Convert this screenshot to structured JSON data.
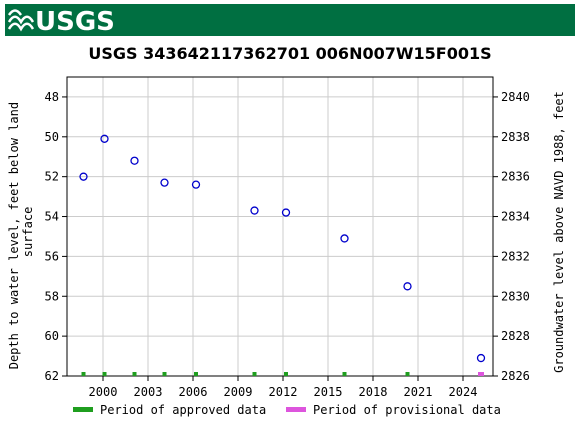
{
  "header": {
    "logo_text": "USGS",
    "bar_color": "#006f41"
  },
  "chart_data": {
    "type": "scatter",
    "title": "USGS 343642117362701 006N007W15F001S",
    "ylabel_left": "Depth to water level, feet below land surface",
    "ylabel_right": "Groundwater level above NAVD 1988, feet",
    "xlim": [
      1997.6,
      2026.0
    ],
    "ylim_left": [
      62,
      47
    ],
    "ylim_right": [
      2826,
      2841
    ],
    "x_ticks": [
      2000,
      2003,
      2006,
      2009,
      2012,
      2015,
      2018,
      2021,
      2024
    ],
    "y_left_ticks": [
      48,
      50,
      52,
      54,
      56,
      58,
      60,
      62
    ],
    "y_right_ticks": [
      2840,
      2838,
      2836,
      2834,
      2832,
      2830,
      2828,
      2826
    ],
    "grid": true,
    "marker_color": "#0000cc",
    "points": [
      {
        "x": 1998.7,
        "y": 52.0
      },
      {
        "x": 2000.1,
        "y": 50.1
      },
      {
        "x": 2002.1,
        "y": 51.2
      },
      {
        "x": 2004.1,
        "y": 52.3
      },
      {
        "x": 2006.2,
        "y": 52.4
      },
      {
        "x": 2010.1,
        "y": 53.7
      },
      {
        "x": 2012.2,
        "y": 53.8
      },
      {
        "x": 2016.1,
        "y": 55.1
      },
      {
        "x": 2020.3,
        "y": 57.5
      },
      {
        "x": 2025.2,
        "y": 61.1
      }
    ],
    "approved_markers_x": [
      1998.7,
      2000.1,
      2002.1,
      2004.1,
      2006.2,
      2010.1,
      2012.2,
      2016.1,
      2020.3
    ],
    "provisional_markers_x": [
      2025.2
    ],
    "legend": {
      "placement": "bottom",
      "items": [
        {
          "label": "Period of approved data",
          "color": "#1f9e1f"
        },
        {
          "label": "Period of provisional data",
          "color": "#dd55dd"
        }
      ]
    }
  }
}
